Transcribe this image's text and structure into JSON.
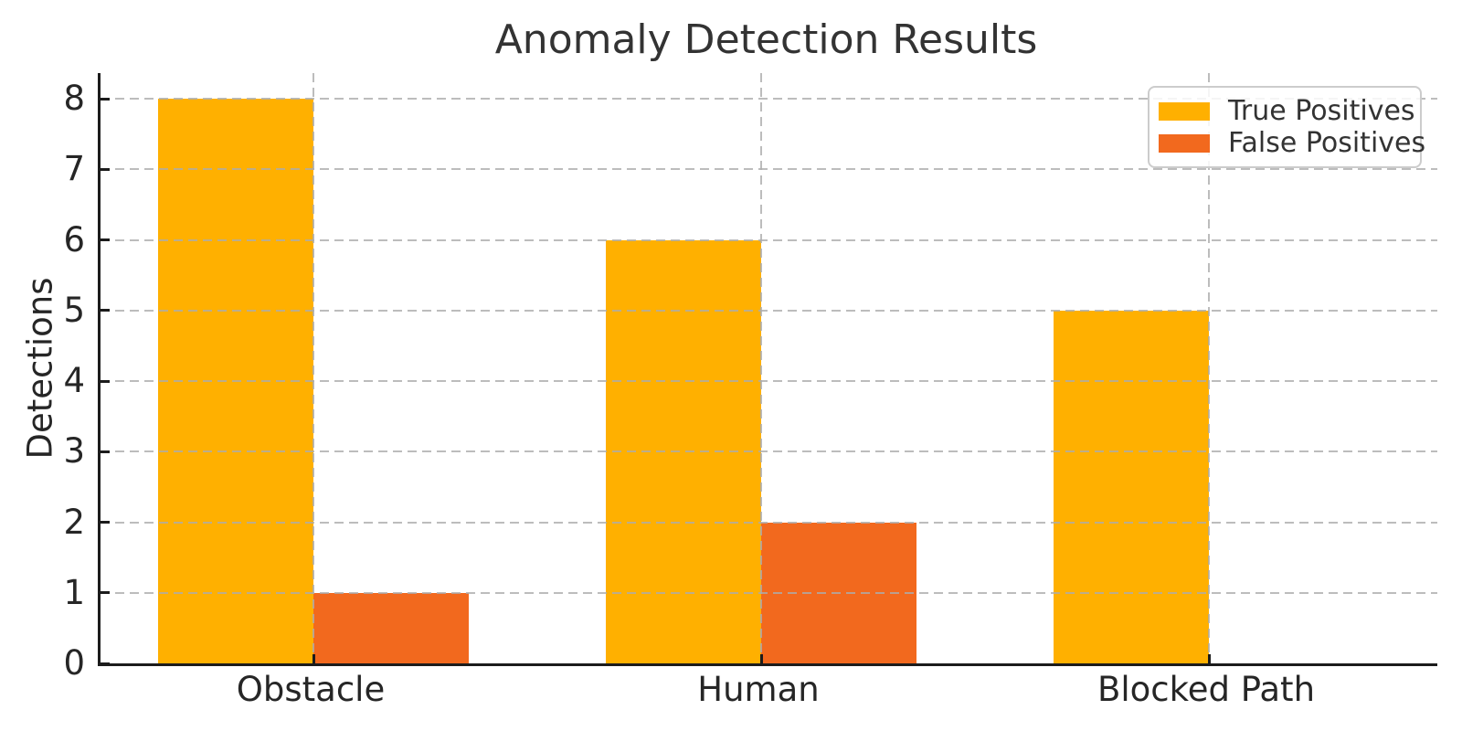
{
  "chart_data": {
    "type": "bar",
    "title": "Anomaly Detection Results",
    "xlabel": "",
    "ylabel": "Detections",
    "categories": [
      "Obstacle",
      "Human",
      "Blocked Path"
    ],
    "series": [
      {
        "name": "True Positives",
        "color": "#FFB000",
        "values": [
          8,
          6,
          5
        ]
      },
      {
        "name": "False Positives",
        "color": "#F2691E",
        "values": [
          1,
          2,
          0
        ]
      }
    ],
    "yticks": [
      0,
      1,
      2,
      3,
      4,
      5,
      6,
      7,
      8
    ],
    "ylim": [
      0,
      8.4
    ],
    "grid": {
      "enabled": true,
      "style": "dashed",
      "axes": "both",
      "color": "#ABABAB",
      "drawn_above_bars": true
    },
    "legend": {
      "position": "upper-right",
      "entries": [
        "True Positives",
        "False Positives"
      ]
    }
  },
  "style": {
    "background": "#FFFFFF",
    "axis_color": "#1C1C1C",
    "text_color": "#262626",
    "legend_border_color": "#CCCCCC"
  }
}
